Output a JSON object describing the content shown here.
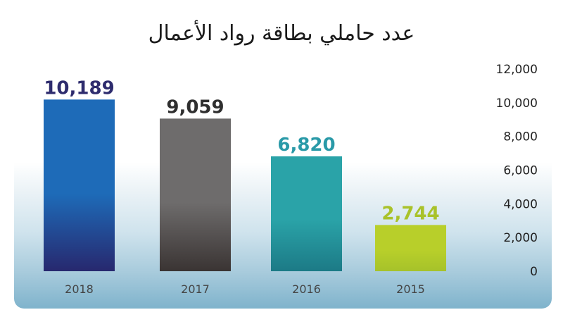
{
  "chart_data": {
    "type": "bar",
    "title": "عدد حاملي بطاقة رواد الأعمال",
    "categories": [
      "2018",
      "2017",
      "2016",
      "2015"
    ],
    "values": [
      10189,
      9059,
      6820,
      2744
    ],
    "value_labels": [
      "10,189",
      "9,059",
      "6,820",
      "2,744"
    ],
    "yticks": [
      "0",
      "2,000",
      "4,000",
      "6,000",
      "8,000",
      "10,000",
      "12,000"
    ],
    "ylim": [
      0,
      12000
    ],
    "grid": false,
    "y_axis_side": "right",
    "bar_colors": [
      "#1e6bb8",
      "#6e6c6c",
      "#2aa3a8",
      "#b8cf2a"
    ],
    "bar_gradient_bottoms": [
      "#27286e",
      "#3a3433",
      "#1c7a86",
      "#a6c22a"
    ],
    "label_colors": [
      "#2e2c6e",
      "#2f2f2f",
      "#2a9aa8",
      "#a9c22a"
    ]
  }
}
